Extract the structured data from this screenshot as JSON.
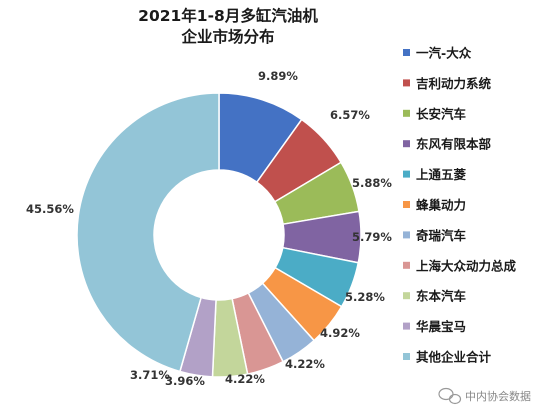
{
  "chart_data": {
    "type": "pie",
    "variant": "donut",
    "title_lines": [
      "2021年1-8月多缸汽油机",
      "企业市场分布"
    ],
    "legend_position": "right",
    "slices": [
      {
        "label": "一汽-大众",
        "value": 9.89,
        "display": "9.89%",
        "color": "#4472c4"
      },
      {
        "label": "吉利动力系统",
        "value": 6.57,
        "display": "6.57%",
        "color": "#c0504d"
      },
      {
        "label": "长安汽车",
        "value": 5.88,
        "display": "5.88%",
        "color": "#9bbb59"
      },
      {
        "label": "东风有限本部",
        "value": 5.79,
        "display": "5.79%",
        "color": "#8064a2"
      },
      {
        "label": "上通五菱",
        "value": 5.28,
        "display": "5.28%",
        "color": "#4bacc6"
      },
      {
        "label": "蜂巢动力",
        "value": 4.92,
        "display": "4.92%",
        "color": "#f79646"
      },
      {
        "label": "奇瑞汽车",
        "value": 4.22,
        "display": "4.22%",
        "color": "#95b3d7"
      },
      {
        "label": "上海大众动力总成",
        "value": 4.22,
        "display": "4.22%",
        "color": "#d99694"
      },
      {
        "label": "东本汽车",
        "value": 3.96,
        "display": "3.96%",
        "color": "#c3d69b"
      },
      {
        "label": "华晨宝马",
        "value": 3.71,
        "display": "3.71%",
        "color": "#b2a1c7"
      },
      {
        "label": "其他企业合计",
        "value": 45.56,
        "display": "45.56%",
        "color": "#93c5d7"
      }
    ]
  },
  "watermark": "中内协会数据"
}
